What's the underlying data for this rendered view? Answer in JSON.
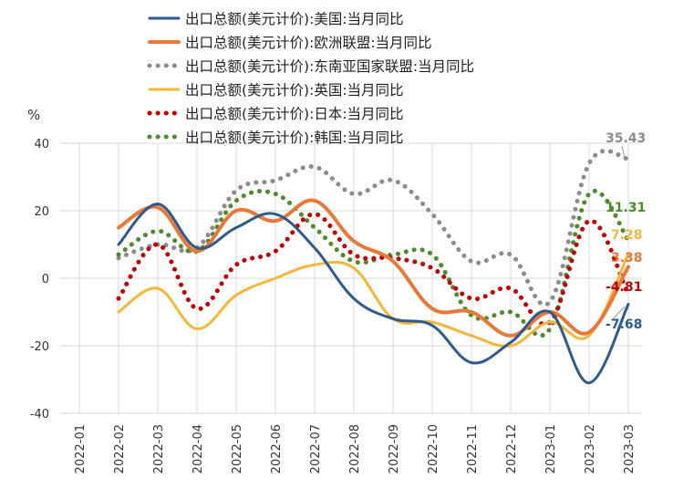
{
  "chart_data": {
    "type": "line",
    "title": "",
    "ylabel": "%",
    "xlabel": "",
    "ylim": [
      -40,
      40
    ],
    "yticks": [
      "40",
      "20",
      "0",
      "-20",
      "-40"
    ],
    "categories": [
      "2022-01",
      "2022-02",
      "2022-03",
      "2022-04",
      "2022-05",
      "2022-06",
      "2022-07",
      "2022-08",
      "2022-09",
      "2022-10",
      "2022-11",
      "2022-12",
      "2023-01",
      "2023-02",
      "2023-03"
    ],
    "grid": true,
    "legend_position": "top",
    "series": [
      {
        "name": "出口总额(美元计价):美国:当月同比",
        "color": "#2e5a8c",
        "style": "solid",
        "width": 3,
        "values": [
          null,
          10,
          22,
          9,
          15,
          19,
          9,
          -6,
          -12,
          -14,
          -25,
          -19,
          -10,
          -31,
          -7.68
        ],
        "end_label": "-7.68"
      },
      {
        "name": "出口总额(美元计价):欧洲联盟:当月同比",
        "color": "#e8793a",
        "style": "solid",
        "width": 4,
        "values": [
          null,
          15,
          21,
          8,
          20,
          17,
          23,
          11,
          5,
          -9,
          -10,
          -17,
          -10,
          -16,
          3.38
        ],
        "end_label": "3.38"
      },
      {
        "name": "出口总额(美元计价):东南亚国家联盟:当月同比",
        "color": "#8c8c8c",
        "style": "dotted",
        "width": 4,
        "values": [
          null,
          6,
          10,
          9,
          26,
          29,
          33,
          25,
          29,
          19,
          5,
          7,
          -7,
          34,
          35.43
        ],
        "end_label": "35.43"
      },
      {
        "name": "出口总额(美元计价):英国:当月同比",
        "color": "#f5b73b",
        "style": "solid",
        "width": 3,
        "values": [
          null,
          -10,
          -3,
          -15,
          -5,
          0,
          4,
          3,
          -12,
          -13,
          -17,
          -20,
          -13,
          -17,
          7.28
        ],
        "end_label": "7.28"
      },
      {
        "name": "出口总额(美元计价):日本:当月同比",
        "color": "#c00000",
        "style": "dotted",
        "width": 4,
        "values": [
          null,
          -6,
          10,
          -9,
          4,
          8,
          19,
          7,
          6,
          3,
          -6,
          -3,
          -13,
          17,
          -4.81
        ],
        "end_label": "-4.81"
      },
      {
        "name": "出口总额(美元计价):韩国:当月同比",
        "color": "#4f8a2e",
        "style": "dotted",
        "width": 4,
        "values": [
          null,
          7,
          14,
          8,
          23,
          25,
          15,
          5,
          7,
          7,
          -11,
          -10,
          -15,
          25,
          11.31
        ],
        "end_label": "11.31"
      }
    ]
  }
}
